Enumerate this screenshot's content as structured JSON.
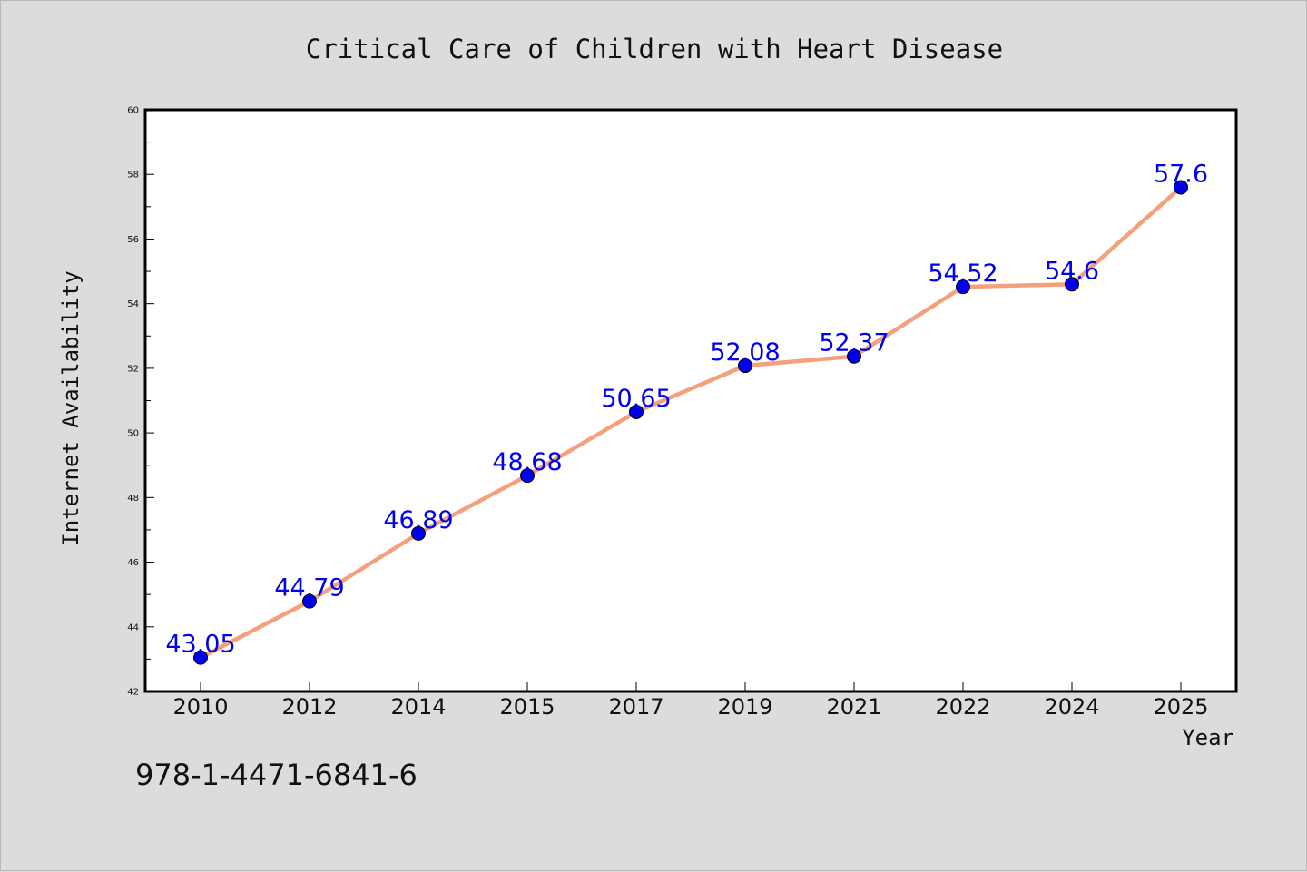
{
  "chart_data": {
    "type": "line",
    "title": "Critical Care of Children with Heart Disease",
    "xlabel": "Year",
    "ylabel": "Internet Availability",
    "categories": [
      "2010",
      "2012",
      "2014",
      "2015",
      "2017",
      "2019",
      "2021",
      "2022",
      "2024",
      "2025"
    ],
    "series": [
      {
        "values": [
          43.05,
          44.79,
          46.89,
          48.68,
          50.65,
          52.08,
          52.37,
          54.52,
          54.6,
          57.6
        ],
        "data_labels": [
          "43.05",
          "44.79",
          "46.89",
          "48.68",
          "50.65",
          "52.08",
          "52.37",
          "54.52",
          "54.6",
          "57.6"
        ],
        "line_color": "#f4a07a",
        "marker_color": "#0000ee"
      }
    ],
    "ylim": [
      42,
      60
    ],
    "yticks": [
      "42",
      "44",
      "46",
      "48",
      "50",
      "52",
      "54",
      "56",
      "58",
      "60"
    ],
    "grid": false,
    "label_color": "#0000ee"
  },
  "footnote": "978-1-4471-6841-6"
}
